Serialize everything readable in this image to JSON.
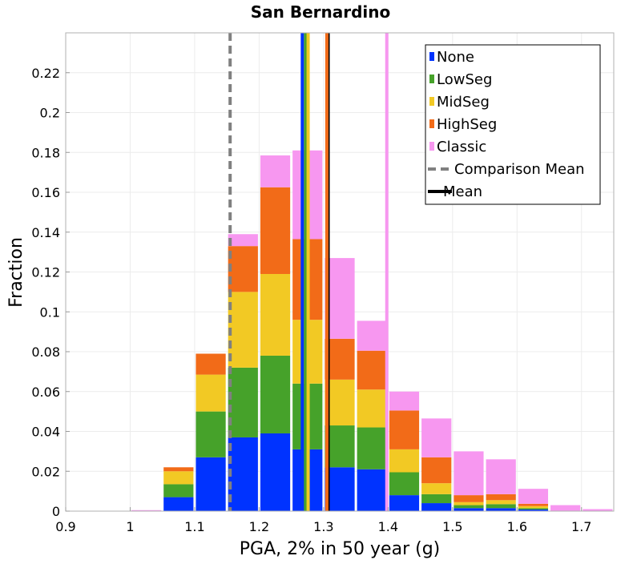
{
  "chart_data": {
    "type": "bar",
    "stacked": true,
    "title": "San Bernardino",
    "xlabel": "PGA, 2% in 50 year (g)",
    "ylabel": "Fraction",
    "xlim": [
      0.9,
      1.75
    ],
    "ylim": [
      0,
      0.24
    ],
    "grid": true,
    "legend_position": "top-right",
    "xticks": [
      "0.9",
      "1",
      "1.1",
      "1.2",
      "1.3",
      "1.4",
      "1.5",
      "1.6",
      "1.7"
    ],
    "xtick_values": [
      0.9,
      1.0,
      1.1,
      1.2,
      1.3,
      1.4,
      1.5,
      1.6,
      1.7
    ],
    "yticks": [
      "0",
      "0.02",
      "0.04",
      "0.06",
      "0.08",
      "0.1",
      "0.12",
      "0.14",
      "0.16",
      "0.18",
      "0.2",
      "0.22"
    ],
    "ytick_values": [
      0,
      0.02,
      0.04,
      0.06,
      0.08,
      0.1,
      0.12,
      0.14,
      0.16,
      0.18,
      0.2,
      0.22
    ],
    "bin_width": 0.05,
    "bin_starts": [
      0.9,
      0.95,
      1.0,
      1.05,
      1.1,
      1.15,
      1.2,
      1.25,
      1.3,
      1.35,
      1.4,
      1.45,
      1.5,
      1.55,
      1.6,
      1.65,
      1.7
    ],
    "series": [
      {
        "name": "None",
        "color": "#0033ff",
        "values": [
          0,
          0,
          0,
          0.007,
          0.027,
          0.037,
          0.039,
          0.031,
          0.022,
          0.021,
          0.008,
          0.004,
          0.0015,
          0.0015,
          0.0008,
          0,
          0
        ]
      },
      {
        "name": "LowSeg",
        "color": "#46a22a",
        "values": [
          0,
          0,
          0,
          0.0065,
          0.023,
          0.035,
          0.039,
          0.033,
          0.021,
          0.021,
          0.0115,
          0.0045,
          0.0015,
          0.002,
          0.0007,
          0,
          0
        ]
      },
      {
        "name": "MidSeg",
        "color": "#f2c924",
        "values": [
          0,
          0,
          0,
          0.0065,
          0.0185,
          0.038,
          0.041,
          0.032,
          0.023,
          0.019,
          0.0115,
          0.0055,
          0.0015,
          0.002,
          0.001,
          0,
          0
        ]
      },
      {
        "name": "HighSeg",
        "color": "#f26b18",
        "values": [
          0,
          0,
          0,
          0.002,
          0.0105,
          0.023,
          0.0435,
          0.0405,
          0.0205,
          0.0195,
          0.0195,
          0.013,
          0.0035,
          0.003,
          0.0012,
          0,
          0
        ]
      },
      {
        "name": "Classic",
        "color": "#f797f0",
        "values": [
          0,
          0,
          0.0005,
          0,
          0,
          0.006,
          0.016,
          0.0445,
          0.0405,
          0.015,
          0.0095,
          0.0195,
          0.022,
          0.0175,
          0.0075,
          0.003,
          0.001
        ]
      }
    ],
    "vertical_lines": [
      {
        "name": "Comparison Mean",
        "x": 1.155,
        "color": "#808080",
        "style": "dashed"
      },
      {
        "name": "Mean",
        "x": 1.307,
        "color": "#000000",
        "style": "solid"
      },
      {
        "name": "None",
        "x": 1.267,
        "color": "#0033ff",
        "style": "solid"
      },
      {
        "name": "LowSeg",
        "x": 1.272,
        "color": "#46a22a",
        "style": "solid"
      },
      {
        "name": "MidSeg",
        "x": 1.276,
        "color": "#f2c924",
        "style": "solid"
      },
      {
        "name": "HighSeg",
        "x": 1.305,
        "color": "#f26b18",
        "style": "solid"
      },
      {
        "name": "Classic",
        "x": 1.398,
        "color": "#f797f0",
        "style": "solid"
      }
    ],
    "legend": [
      {
        "label": "None",
        "color": "#0033ff",
        "kind": "swatch"
      },
      {
        "label": "LowSeg",
        "color": "#46a22a",
        "kind": "swatch"
      },
      {
        "label": "MidSeg",
        "color": "#f2c924",
        "kind": "swatch"
      },
      {
        "label": "HighSeg",
        "color": "#f26b18",
        "kind": "swatch"
      },
      {
        "label": "Classic",
        "color": "#f797f0",
        "kind": "swatch"
      },
      {
        "label": "Comparison Mean",
        "color": "#808080",
        "kind": "dashed-line"
      },
      {
        "label": "Mean",
        "color": "#000000",
        "kind": "solid-line"
      }
    ]
  }
}
